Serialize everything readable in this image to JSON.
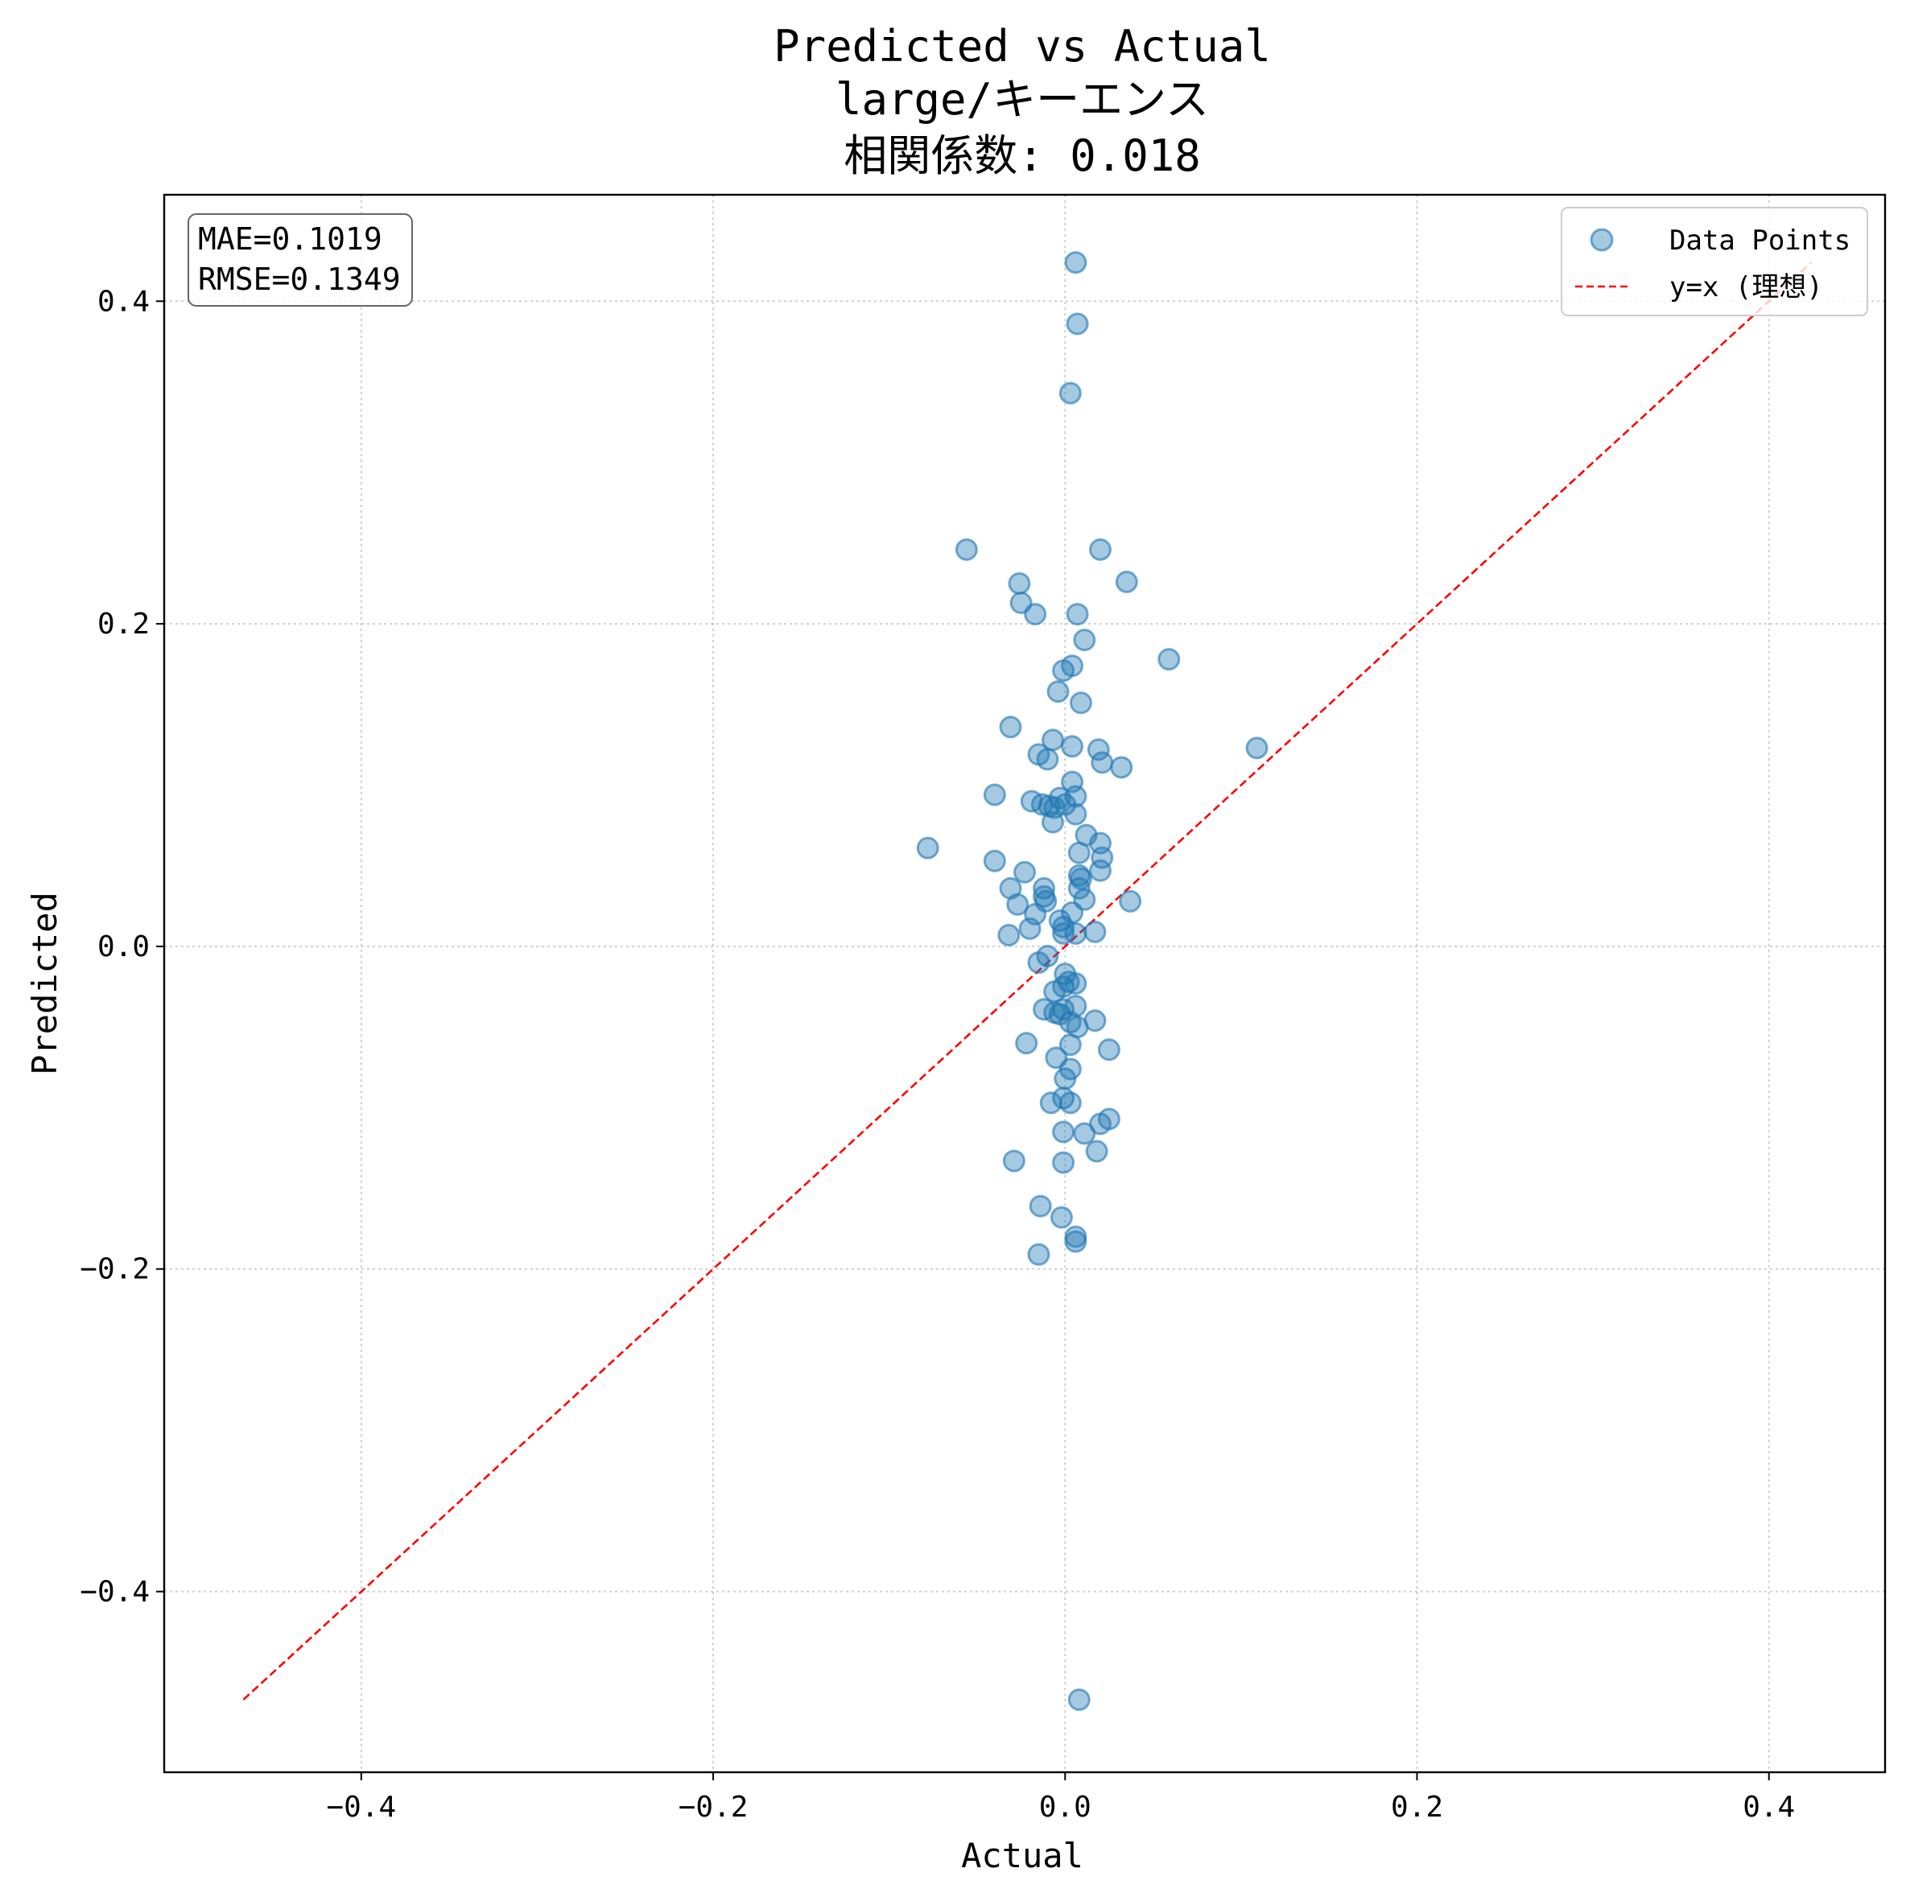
{
  "chart_data": {
    "type": "scatter",
    "title": "Predicted vs Actual",
    "subtitle": "large/キーエンス",
    "correlation_label": "相関係数: 0.018",
    "xlabel": "Actual",
    "ylabel": "Predicted",
    "xlim": [
      -0.512,
      0.466
    ],
    "ylim": [
      -0.512,
      0.466
    ],
    "xticks": [
      -0.4,
      -0.2,
      0.0,
      0.2,
      0.4
    ],
    "yticks": [
      -0.4,
      -0.2,
      0.0,
      0.2,
      0.4
    ],
    "xtick_labels": [
      "−0.4",
      "−0.2",
      "0.0",
      "0.2",
      "0.4"
    ],
    "ytick_labels": [
      "−0.4",
      "−0.2",
      "0.0",
      "0.2",
      "0.4"
    ],
    "grid": true,
    "legend_position": "top-right",
    "stats": [
      "MAE=0.1019",
      "RMSE=0.1349"
    ],
    "series": [
      {
        "name": "Data Points",
        "kind": "scatter",
        "color": "#1f77b4",
        "opacity": 0.4,
        "points": [
          [
            0.006,
            0.424
          ],
          [
            0.007,
            0.386
          ],
          [
            0.003,
            0.343
          ],
          [
            -0.056,
            0.246
          ],
          [
            0.02,
            0.246
          ],
          [
            -0.026,
            0.225
          ],
          [
            0.035,
            0.226
          ],
          [
            -0.025,
            0.213
          ],
          [
            -0.017,
            0.206
          ],
          [
            0.007,
            0.206
          ],
          [
            0.011,
            0.19
          ],
          [
            0.059,
            0.178
          ],
          [
            0.004,
            0.174
          ],
          [
            -0.001,
            0.171
          ],
          [
            -0.004,
            0.158
          ],
          [
            0.009,
            0.151
          ],
          [
            -0.031,
            0.136
          ],
          [
            -0.007,
            0.128
          ],
          [
            0.004,
            0.124
          ],
          [
            0.019,
            0.122
          ],
          [
            0.109,
            0.123
          ],
          [
            -0.015,
            0.119
          ],
          [
            -0.01,
            0.116
          ],
          [
            0.021,
            0.114
          ],
          [
            0.032,
            0.111
          ],
          [
            0.004,
            0.102
          ],
          [
            -0.04,
            0.094
          ],
          [
            0.006,
            0.093
          ],
          [
            -0.003,
            0.092
          ],
          [
            -0.019,
            0.09
          ],
          [
            -0.013,
            0.088
          ],
          [
            -0.009,
            0.087
          ],
          [
            -0.006,
            0.086
          ],
          [
            0.0,
            0.088
          ],
          [
            0.006,
            0.082
          ],
          [
            -0.007,
            0.077
          ],
          [
            0.012,
            0.069
          ],
          [
            0.02,
            0.064
          ],
          [
            -0.078,
            0.061
          ],
          [
            0.008,
            0.058
          ],
          [
            0.021,
            0.055
          ],
          [
            -0.04,
            0.053
          ],
          [
            0.02,
            0.047
          ],
          [
            -0.023,
            0.046
          ],
          [
            0.008,
            0.044
          ],
          [
            0.009,
            0.042
          ],
          [
            0.008,
            0.036
          ],
          [
            -0.012,
            0.036
          ],
          [
            -0.031,
            0.036
          ],
          [
            -0.012,
            0.031
          ],
          [
            -0.011,
            0.028
          ],
          [
            0.011,
            0.029
          ],
          [
            0.037,
            0.028
          ],
          [
            -0.027,
            0.026
          ],
          [
            0.004,
            0.021
          ],
          [
            -0.017,
            0.02
          ],
          [
            -0.003,
            0.016
          ],
          [
            -0.001,
            0.012
          ],
          [
            -0.02,
            0.011
          ],
          [
            -0.001,
            0.008
          ],
          [
            0.006,
            0.008
          ],
          [
            0.017,
            0.009
          ],
          [
            -0.032,
            0.007
          ],
          [
            -0.01,
            -0.006
          ],
          [
            -0.015,
            -0.01
          ],
          [
            0.0,
            -0.017
          ],
          [
            0.002,
            -0.022
          ],
          [
            0.006,
            -0.023
          ],
          [
            -0.001,
            -0.025
          ],
          [
            -0.006,
            -0.028
          ],
          [
            0.006,
            -0.037
          ],
          [
            -0.001,
            -0.039
          ],
          [
            -0.012,
            -0.039
          ],
          [
            -0.006,
            -0.041
          ],
          [
            -0.003,
            -0.042
          ],
          [
            0.003,
            -0.047
          ],
          [
            0.017,
            -0.046
          ],
          [
            0.007,
            -0.05
          ],
          [
            -0.022,
            -0.06
          ],
          [
            0.003,
            -0.061
          ],
          [
            0.025,
            -0.064
          ],
          [
            -0.005,
            -0.069
          ],
          [
            0.003,
            -0.076
          ],
          [
            0.0,
            -0.082
          ],
          [
            -0.001,
            -0.094
          ],
          [
            -0.008,
            -0.097
          ],
          [
            0.003,
            -0.097
          ],
          [
            0.025,
            -0.107
          ],
          [
            0.02,
            -0.11
          ],
          [
            -0.001,
            -0.115
          ],
          [
            0.011,
            -0.116
          ],
          [
            0.018,
            -0.127
          ],
          [
            -0.029,
            -0.133
          ],
          [
            -0.001,
            -0.134
          ],
          [
            -0.014,
            -0.161
          ],
          [
            -0.002,
            -0.168
          ],
          [
            0.006,
            -0.18
          ],
          [
            0.006,
            -0.183
          ],
          [
            -0.015,
            -0.191
          ],
          [
            0.008,
            -0.467
          ]
        ]
      },
      {
        "name": "y=x (理想)",
        "kind": "line",
        "color": "#ff0000",
        "dash": "dashed",
        "points": [
          [
            -0.467,
            -0.467
          ],
          [
            0.424,
            0.424
          ]
        ]
      }
    ]
  }
}
